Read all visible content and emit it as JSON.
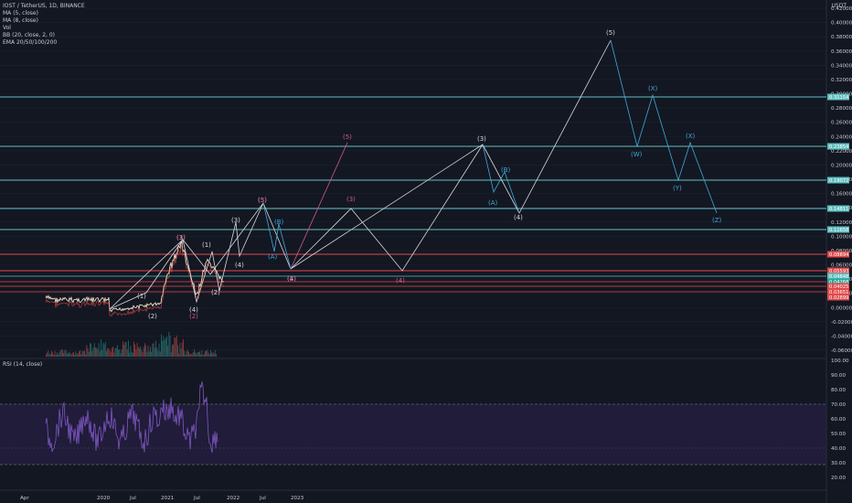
{
  "header": {
    "title": "IOST / TetherUS, 1D, BINANCE",
    "indicators": [
      "MA (5, close)",
      "MA (8, close)",
      "Vol",
      "BB (20, close, 2, 0)",
      "EMA 20/50/100/200"
    ],
    "currency": "USDT"
  },
  "rsi_label": "RSI (14, close)",
  "price_axis": [
    "0.42000",
    "0.40000",
    "0.38000",
    "0.36000",
    "0.34000",
    "0.32000",
    "0.30000",
    "0.28000",
    "0.26000",
    "0.24000",
    "0.22000",
    "0.20000",
    "0.18000",
    "0.16000",
    "0.14000",
    "0.12000",
    "0.10000",
    "0.08000",
    "0.06000",
    "0.04000",
    "0.02000",
    "0.00000",
    "-0.02000",
    "-0.04000",
    "-0.06000"
  ],
  "price_tags": [
    {
      "text": "0.31154",
      "color": "#5fbfc0"
    },
    {
      "text": "0.23854",
      "color": "#5fbfc0"
    },
    {
      "text": "0.19072",
      "color": "#5fbfc0"
    },
    {
      "text": "0.14811",
      "color": "#5fbfc0"
    },
    {
      "text": "0.11658",
      "color": "#5fbfc0"
    },
    {
      "text": "0.08894",
      "color": "#e04a4a"
    },
    {
      "text": "0.05593",
      "color": "#e04a4a"
    },
    {
      "text": "0.04848",
      "color": "#5fbfc0"
    },
    {
      "text": "0.04268",
      "color": "#26a69a"
    },
    {
      "text": "0.04025",
      "color": "#e04a4a"
    },
    {
      "text": "0.03651",
      "color": "#e04a4a"
    },
    {
      "text": "0.02899",
      "color": "#e04a4a"
    }
  ],
  "rsi_axis": [
    "100.00",
    "90.00",
    "80.00",
    "70.00",
    "60.00",
    "50.00",
    "40.00",
    "30.00",
    "20.00"
  ],
  "time_axis": [
    "Apr",
    "2020",
    "Jul",
    "2021",
    "Jul",
    "2022",
    "Jul",
    "2023"
  ],
  "colors": {
    "background": "#131722",
    "teal": "#5fbfc0",
    "red": "#e04a4a",
    "wave_white": "#d8d8d8",
    "wave_pink": "#d45a8a",
    "wave_blue": "#3fa9d8",
    "rsi_line": "#7e57c2",
    "rsi_band": "#2a1f4a"
  },
  "wave_labels": {
    "main": [
      "(1)",
      "(2)",
      "(3)",
      "(4)",
      "(5)",
      "(1)",
      "(2)",
      "(3)",
      "(4)",
      "(5)",
      "(3)",
      "(4)",
      "(3)",
      "(4)",
      "(5)",
      "(3)",
      "(4)"
    ],
    "pink": [
      "(1)",
      "(2)",
      "(2)",
      "(4)",
      "(5)"
    ],
    "blue": [
      "(A)",
      "(B)",
      "(A)",
      "(B)",
      "(W)",
      "(X)",
      "(Y)",
      "(X)",
      "(Z)"
    ]
  }
}
